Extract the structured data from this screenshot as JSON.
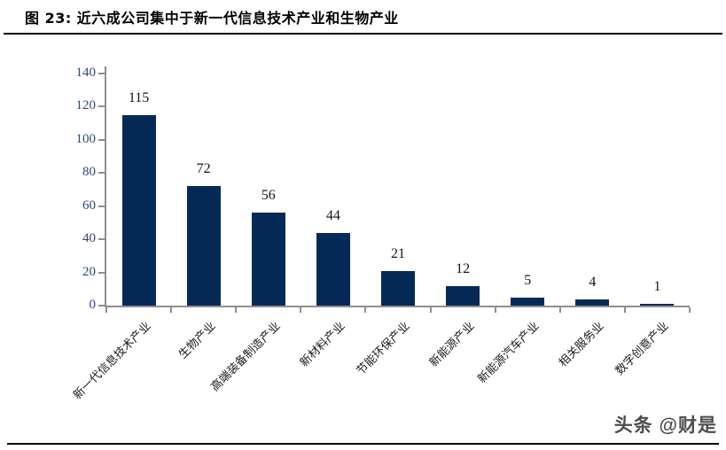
{
  "header": {
    "title": "图 23: 近六成公司集中于新一代信息技术产业和生物产业"
  },
  "watermark": {
    "text": "头条 @财是"
  },
  "chart_data": {
    "type": "bar",
    "categories": [
      "新一代信息技术产业",
      "生物产业",
      "高端装备制造产业",
      "新材料产业",
      "节能环保产业",
      "新能源产业",
      "新能源汽车产业",
      "相关服务业",
      "数字创意产业"
    ],
    "values": [
      115,
      72,
      56,
      44,
      21,
      12,
      5,
      4,
      1
    ],
    "title": "",
    "xlabel": "",
    "ylabel": "",
    "ylim": [
      0,
      140
    ],
    "yticks": [
      0,
      20,
      40,
      60,
      80,
      100,
      120,
      140
    ],
    "grid": false,
    "legend_position": "none",
    "bar_color": "#062a57",
    "axis_color": "#8f8f8f",
    "ytick_label_color": "#2c4a72",
    "value_label_color": "#141414",
    "category_label_color": "#1a1a1a"
  }
}
